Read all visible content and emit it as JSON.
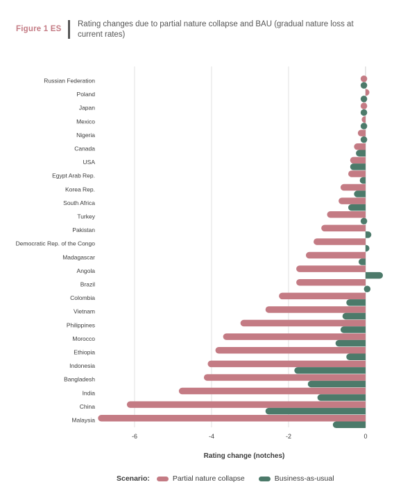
{
  "figure": {
    "label": "Figure 1 ES",
    "title": "Rating changes due to partial nature collapse and BAU (gradual nature loss at current rates)"
  },
  "legend": {
    "title": "Scenario:",
    "items": [
      {
        "label": "Partial nature collapse",
        "color": "#c47b84"
      },
      {
        "label": "Business-as-usual",
        "color": "#4c7a6a"
      }
    ]
  },
  "chart_data": {
    "type": "bar",
    "orientation": "horizontal",
    "categories": [
      "Russian Federation",
      "Poland",
      "Japan",
      "Mexico",
      "Nigeria",
      "Canada",
      "USA",
      "Egypt Arab Rep.",
      "Korea Rep.",
      "South Africa",
      "Turkey",
      "Pakistan",
      "Democratic Rep. of the Congo",
      "Madagascar",
      "Angola",
      "Brazil",
      "Colombia",
      "Vietnam",
      "Philippines",
      "Morocco",
      "Ethiopia",
      "Indonesia",
      "Bangladesh",
      "India",
      "China",
      "Malaysia"
    ],
    "series": [
      {
        "name": "Partial nature collapse",
        "color": "#c47b84",
        "values": [
          -0.02,
          0.1,
          -0.05,
          -0.1,
          -0.2,
          -0.3,
          -0.4,
          -0.45,
          -0.65,
          -0.7,
          -1.0,
          -1.15,
          -1.35,
          -1.55,
          -1.8,
          -1.8,
          -2.25,
          -2.6,
          -3.25,
          -3.7,
          -3.9,
          -4.1,
          -4.2,
          -4.85,
          -6.2,
          -6.95
        ]
      },
      {
        "name": "Business-as-usual",
        "color": "#4c7a6a",
        "values": [
          -0.02,
          -0.08,
          -0.04,
          -0.05,
          -0.08,
          -0.25,
          -0.4,
          -0.15,
          -0.3,
          -0.45,
          -0.03,
          0.15,
          0.1,
          -0.18,
          0.45,
          0.05,
          -0.5,
          -0.6,
          -0.65,
          -0.78,
          -0.5,
          -1.85,
          -1.5,
          -1.25,
          -2.6,
          -0.85
        ]
      }
    ],
    "xlabel": "Rating change (notches)",
    "ylabel": "",
    "xlim": [
      -7,
      0.5
    ],
    "xticks": [
      -6,
      -4,
      -2,
      0
    ],
    "grid": true
  }
}
